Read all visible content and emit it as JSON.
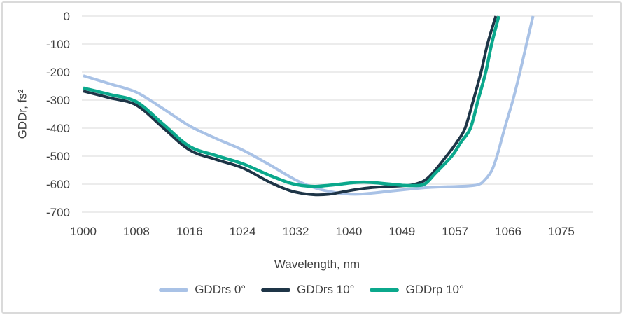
{
  "chart_data": {
    "type": "line",
    "title": "",
    "xlabel": "Wavelength, nm",
    "ylabel": "GDDr, fs²",
    "x_tick_labels": [
      1000,
      1008,
      1016,
      1024,
      1032,
      1040,
      1049,
      1057,
      1066,
      1075
    ],
    "y_ticks": [
      0,
      -100,
      -200,
      -300,
      -400,
      -500,
      -600,
      -700
    ],
    "ylim": [
      -700,
      0
    ],
    "grid": "horizontal-only",
    "legend_position": "bottom-center",
    "gridline_color": "#d9d9d9",
    "text_color": "#3f3f3f",
    "series": [
      {
        "name": "GDDrs 0°",
        "color": "#a9c2e6",
        "points": [
          [
            1000,
            -213
          ],
          [
            1004,
            -242
          ],
          [
            1008,
            -272
          ],
          [
            1012,
            -330
          ],
          [
            1016,
            -392
          ],
          [
            1020,
            -437
          ],
          [
            1024,
            -478
          ],
          [
            1028,
            -530
          ],
          [
            1032,
            -585
          ],
          [
            1035,
            -614
          ],
          [
            1038,
            -630
          ],
          [
            1041,
            -636
          ],
          [
            1044,
            -632
          ],
          [
            1047,
            -625
          ],
          [
            1050,
            -618
          ],
          [
            1053,
            -612
          ],
          [
            1056,
            -609
          ],
          [
            1059,
            -607
          ],
          [
            1061,
            -601
          ],
          [
            1062,
            -586
          ],
          [
            1063.2,
            -552
          ],
          [
            1064.1,
            -500
          ],
          [
            1065.4,
            -400
          ],
          [
            1066.8,
            -300
          ],
          [
            1068,
            -200
          ],
          [
            1069.1,
            -100
          ],
          [
            1070.2,
            0
          ]
        ]
      },
      {
        "name": "GDDrs 10°",
        "color": "#1e3547",
        "points": [
          [
            1000,
            -268
          ],
          [
            1004,
            -292
          ],
          [
            1008,
            -318
          ],
          [
            1012,
            -398
          ],
          [
            1016,
            -478
          ],
          [
            1020,
            -512
          ],
          [
            1024,
            -542
          ],
          [
            1028,
            -592
          ],
          [
            1031,
            -622
          ],
          [
            1033,
            -633
          ],
          [
            1035,
            -638
          ],
          [
            1037,
            -636
          ],
          [
            1039,
            -628
          ],
          [
            1041,
            -620
          ],
          [
            1044,
            -612
          ],
          [
            1047,
            -608
          ],
          [
            1049,
            -606
          ],
          [
            1051,
            -600
          ],
          [
            1053,
            -576
          ],
          [
            1055.7,
            -500
          ],
          [
            1057.3,
            -450
          ],
          [
            1058.7,
            -400
          ],
          [
            1060.1,
            -300
          ],
          [
            1061.4,
            -200
          ],
          [
            1062.5,
            -100
          ],
          [
            1063.9,
            0
          ]
        ]
      },
      {
        "name": "GDDrp 10°",
        "color": "#0ba88c",
        "points": [
          [
            1000,
            -257
          ],
          [
            1004,
            -280
          ],
          [
            1008,
            -306
          ],
          [
            1012,
            -385
          ],
          [
            1016,
            -465
          ],
          [
            1020,
            -498
          ],
          [
            1024,
            -527
          ],
          [
            1028,
            -568
          ],
          [
            1031,
            -595
          ],
          [
            1033,
            -605
          ],
          [
            1035,
            -608
          ],
          [
            1037,
            -604
          ],
          [
            1039,
            -599
          ],
          [
            1041,
            -594
          ],
          [
            1043,
            -593
          ],
          [
            1045,
            -596
          ],
          [
            1047,
            -600
          ],
          [
            1049,
            -604
          ],
          [
            1050.5,
            -605
          ],
          [
            1052.4,
            -600
          ],
          [
            1054,
            -562
          ],
          [
            1056.5,
            -500
          ],
          [
            1058,
            -450
          ],
          [
            1059.6,
            -400
          ],
          [
            1060.9,
            -300
          ],
          [
            1062.2,
            -200
          ],
          [
            1063.2,
            -100
          ],
          [
            1064.4,
            0
          ]
        ]
      }
    ]
  }
}
